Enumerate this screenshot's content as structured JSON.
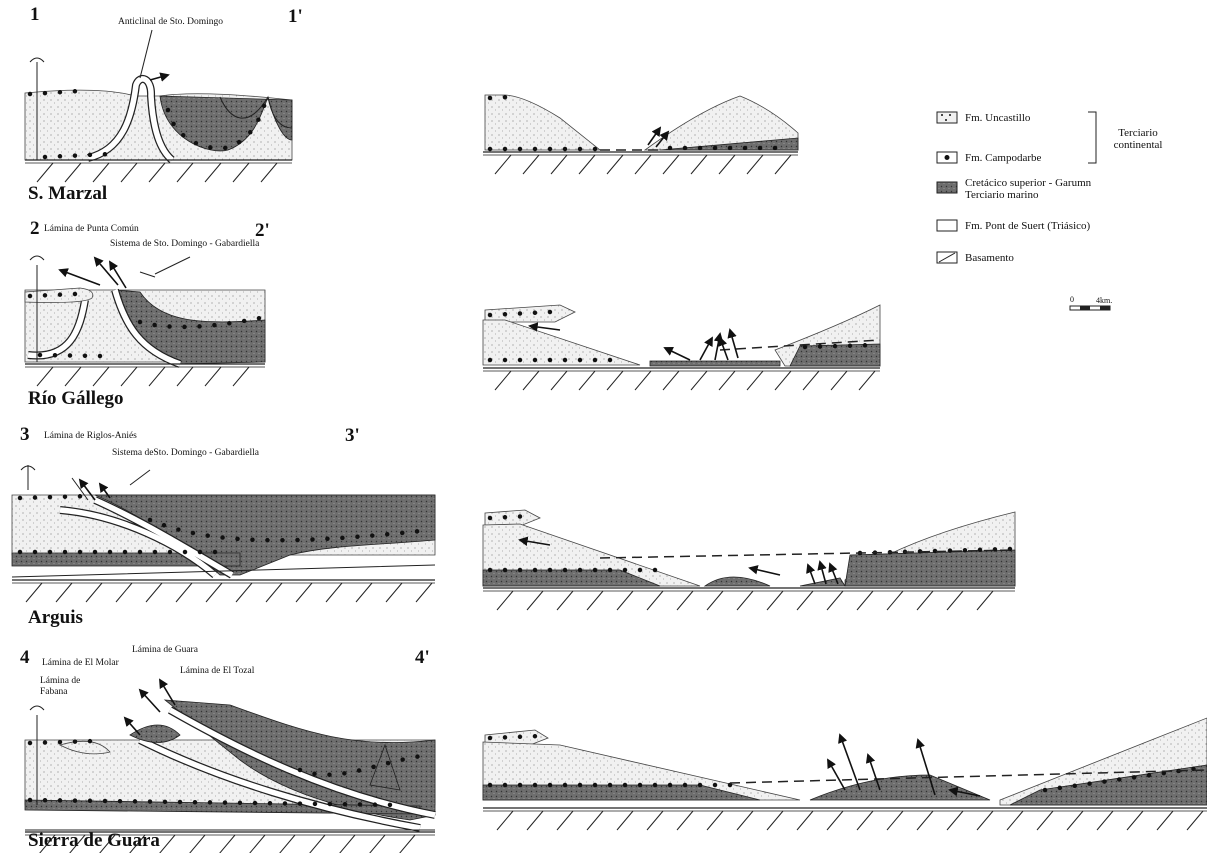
{
  "sections": [
    {
      "number": "1",
      "number_end": "1'",
      "name": "S. Marzal",
      "labels": [
        "Anticlinal de Sto. Domingo"
      ]
    },
    {
      "number": "2",
      "number_end": "2'",
      "name": "Río Gállego",
      "labels": [
        "Lámina de Punta Común",
        "Sistema de Sto. Domingo - Gabardiella"
      ]
    },
    {
      "number": "3",
      "number_end": "3'",
      "name": "Arguis",
      "labels": [
        "Lámina de Riglos-Aniés",
        "Sistema deSto. Domingo - Gabardiella"
      ]
    },
    {
      "number": "4",
      "number_end": "4'",
      "name": "Sierra de Guara",
      "labels": [
        "Lámina de El Molar",
        "Lámina de Guara",
        "Lámina de El Tozal"
      ],
      "label_lines": [
        "Lámina de",
        "Fabana"
      ]
    }
  ],
  "legend": {
    "items": [
      {
        "label": "Fm. Uncastillo"
      },
      {
        "label": "Fm. Campodarbe"
      },
      {
        "label": [
          "Cretácico superior - Garumn",
          "Terciario marino"
        ]
      },
      {
        "label": "Fm. Pont de Suert (Triásico)"
      },
      {
        "label": "Basamento"
      }
    ],
    "group_label": [
      "Terciario",
      "continental"
    ]
  },
  "scale": {
    "start": "0",
    "end": "4km."
  }
}
